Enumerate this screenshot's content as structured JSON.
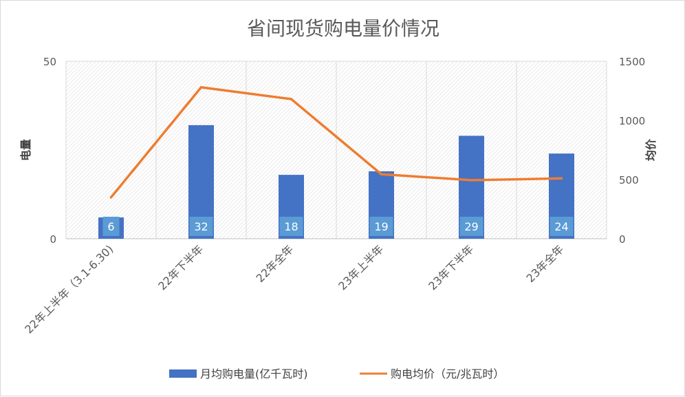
{
  "chart_data": {
    "type": "bar",
    "title": "省间现货购电量价情况",
    "categories": [
      "22年上半年（3.1-6.30)",
      "22年下半年",
      "22年全年",
      "23年上半年",
      "23年下半年",
      "23年全年"
    ],
    "series": [
      {
        "name": "月均购电量(亿千瓦时)",
        "type": "bar",
        "axis": "left",
        "color": "#4472C4",
        "values": [
          6,
          32,
          18,
          19,
          29,
          24
        ],
        "data_labels": [
          "6",
          "32",
          "18",
          "19",
          "29",
          "24"
        ],
        "label_color": "#5B9BD5"
      },
      {
        "name": "购电均价（元/兆瓦时）",
        "type": "line",
        "axis": "right",
        "color": "#ED7D31",
        "values": [
          350,
          1280,
          1180,
          545,
          495,
          510
        ]
      }
    ],
    "ylabel_left": "电量",
    "ylabel_right": "均价",
    "ylim_left": [
      0,
      50
    ],
    "ylim_right": [
      0,
      1500
    ],
    "yticks_left": [
      "0",
      "50"
    ],
    "yticks_right": [
      "0",
      "500",
      "1000",
      "1500"
    ],
    "grid": true,
    "legend_position": "bottom"
  }
}
